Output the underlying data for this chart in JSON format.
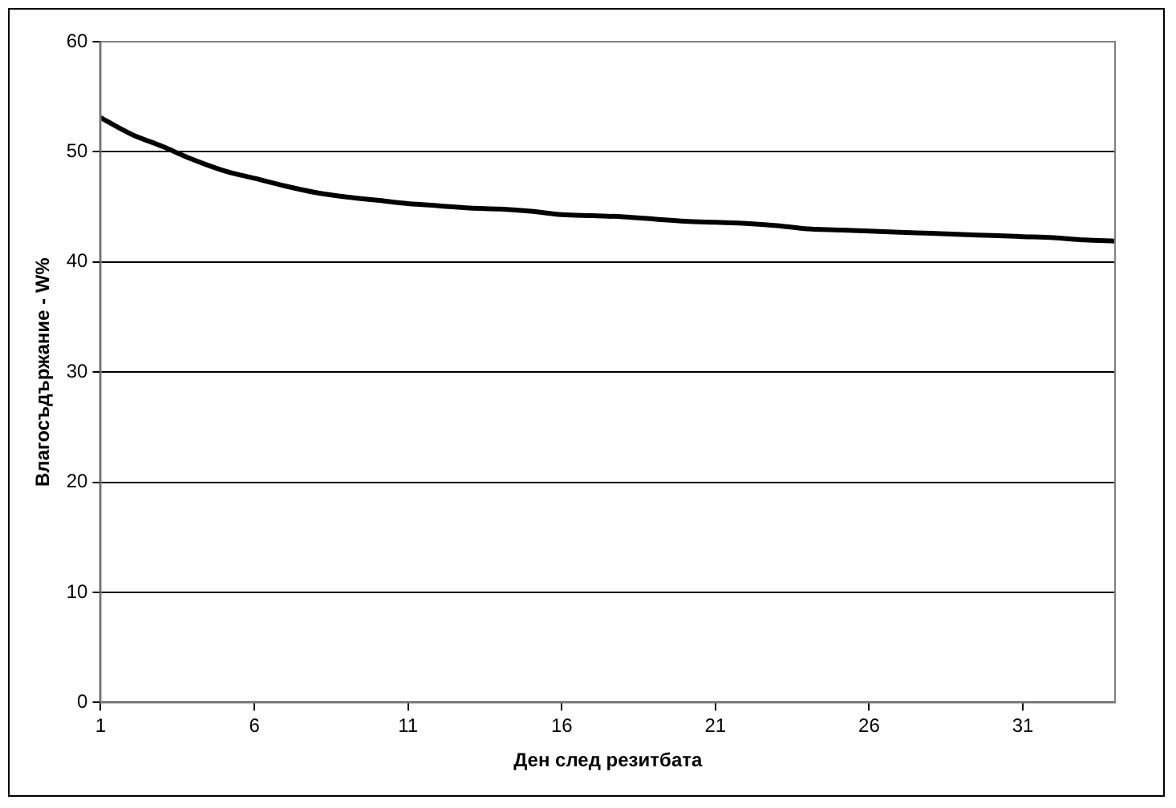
{
  "chart_data": {
    "type": "line",
    "xlabel": "Ден след резитбата",
    "ylabel": "Влагосъдържание - W%",
    "x": [
      1,
      2,
      3,
      4,
      5,
      6,
      7,
      8,
      9,
      10,
      11,
      12,
      13,
      14,
      15,
      16,
      17,
      18,
      19,
      20,
      21,
      22,
      23,
      24,
      25,
      26,
      27,
      28,
      29,
      30,
      31,
      32,
      33,
      34
    ],
    "series": [
      {
        "color": "#000000",
        "values": [
          53.1,
          51.6,
          50.5,
          49.3,
          48.3,
          47.6,
          46.9,
          46.3,
          45.9,
          45.6,
          45.3,
          45.1,
          44.9,
          44.8,
          44.6,
          44.3,
          44.2,
          44.1,
          43.9,
          43.7,
          43.6,
          43.5,
          43.3,
          43.0,
          42.9,
          42.8,
          42.7,
          42.6,
          42.5,
          42.4,
          42.3,
          42.2,
          42.0,
          41.9
        ]
      }
    ],
    "xlim": [
      1,
      34
    ],
    "xticks": [
      1,
      6,
      11,
      16,
      21,
      26,
      31
    ],
    "ylim": [
      0,
      60
    ],
    "yticks": [
      0,
      10,
      20,
      30,
      40,
      50,
      60
    ],
    "grid": "y",
    "legend": false,
    "marker": "none",
    "line_style": "solid"
  }
}
